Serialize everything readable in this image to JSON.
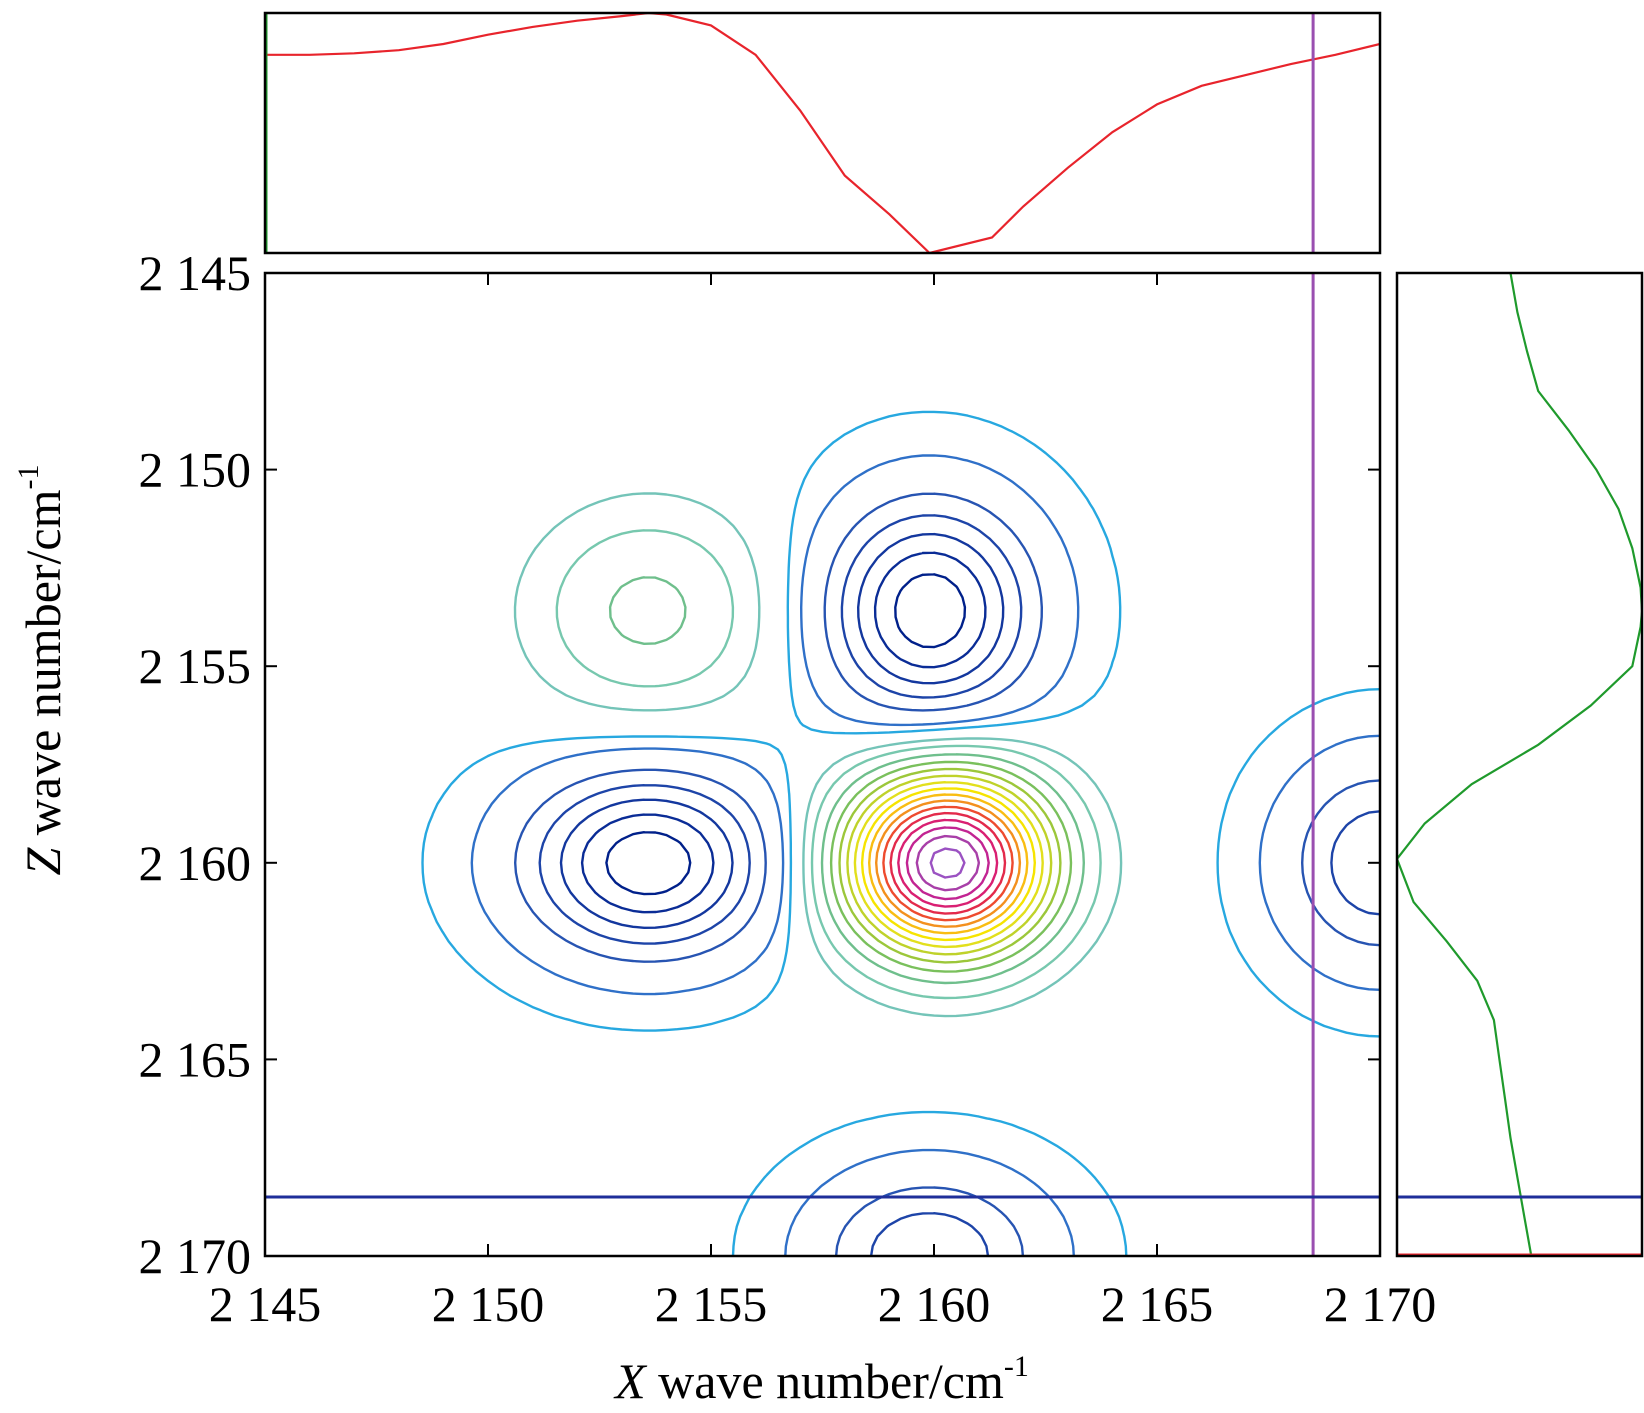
{
  "chart_data": {
    "type": "contour",
    "xlabel_var": "X",
    "xlabel_rest": " wave number/cm",
    "xlabel_sup": "-1",
    "ylabel_var": "Z",
    "ylabel_rest": " wave number/cm",
    "ylabel_sup": "-1",
    "xlim": [
      2145,
      2170
    ],
    "ylim": [
      2145,
      2170
    ],
    "y_inverted": true,
    "xticks": [
      2145,
      2150,
      2155,
      2160,
      2165,
      2170
    ],
    "yticks": [
      2145,
      2150,
      2155,
      2160,
      2165,
      2170
    ],
    "xtick_labels": [
      "2 145",
      "2 150",
      "2 155",
      "2 160",
      "2 165",
      "2 170"
    ],
    "ytick_labels": [
      "2 145",
      "2 150",
      "2 155",
      "2 160",
      "2 165",
      "2 170"
    ],
    "cursor_x": 2168.5,
    "cursor_z": 2168.5,
    "features": [
      {
        "center": [
          2160.3,
          2160.0
        ],
        "sign": "positive",
        "levels": 15
      },
      {
        "center": [
          2159.9,
          2153.6
        ],
        "sign": "negative",
        "levels": 6
      },
      {
        "center": [
          2153.6,
          2160.0
        ],
        "sign": "negative",
        "levels": 6
      },
      {
        "center": [
          2153.6,
          2153.6
        ],
        "sign": "positive",
        "levels": 2
      },
      {
        "center": [
          2159.9,
          2170.0
        ],
        "sign": "negative",
        "levels": 3
      },
      {
        "center": [
          2170.0,
          2160.0
        ],
        "sign": "negative",
        "levels": 3
      }
    ],
    "top_trace": {
      "color": "#e8242c",
      "x": [
        2145,
        2146,
        2147,
        2148,
        2149,
        2150,
        2151,
        2152,
        2153,
        2153.6,
        2154,
        2155,
        2156,
        2157,
        2158,
        2159,
        2159.9,
        2161.3,
        2162,
        2163,
        2164,
        2165,
        2166,
        2167,
        2168,
        2169,
        2170
      ],
      "y": [
        -0.02,
        -0.02,
        -0.01,
        0.01,
        0.05,
        0.11,
        0.16,
        0.2,
        0.23,
        0.25,
        0.24,
        0.17,
        -0.02,
        -0.38,
        -0.8,
        -1.05,
        -1.3,
        -1.2,
        -1.0,
        -0.75,
        -0.52,
        -0.34,
        -0.22,
        -0.15,
        -0.08,
        -0.02,
        0.05
      ]
    },
    "right_trace": {
      "color": "#1f9a2c",
      "z": [
        2145,
        2146,
        2147,
        2148,
        2149,
        2150,
        2151,
        2152,
        2153,
        2153.6,
        2154,
        2155,
        2156,
        2157,
        2158,
        2159,
        2159.9,
        2161,
        2162,
        2163,
        2164,
        2165,
        2166,
        2167,
        2168,
        2169,
        2170
      ],
      "value": [
        0.0,
        0.05,
        0.12,
        0.2,
        0.42,
        0.62,
        0.78,
        0.88,
        0.94,
        0.95,
        0.94,
        0.88,
        0.58,
        0.2,
        -0.28,
        -0.62,
        -0.82,
        -0.7,
        -0.46,
        -0.24,
        -0.12,
        -0.08,
        -0.04,
        0.0,
        0.05,
        0.1,
        0.15
      ]
    }
  }
}
